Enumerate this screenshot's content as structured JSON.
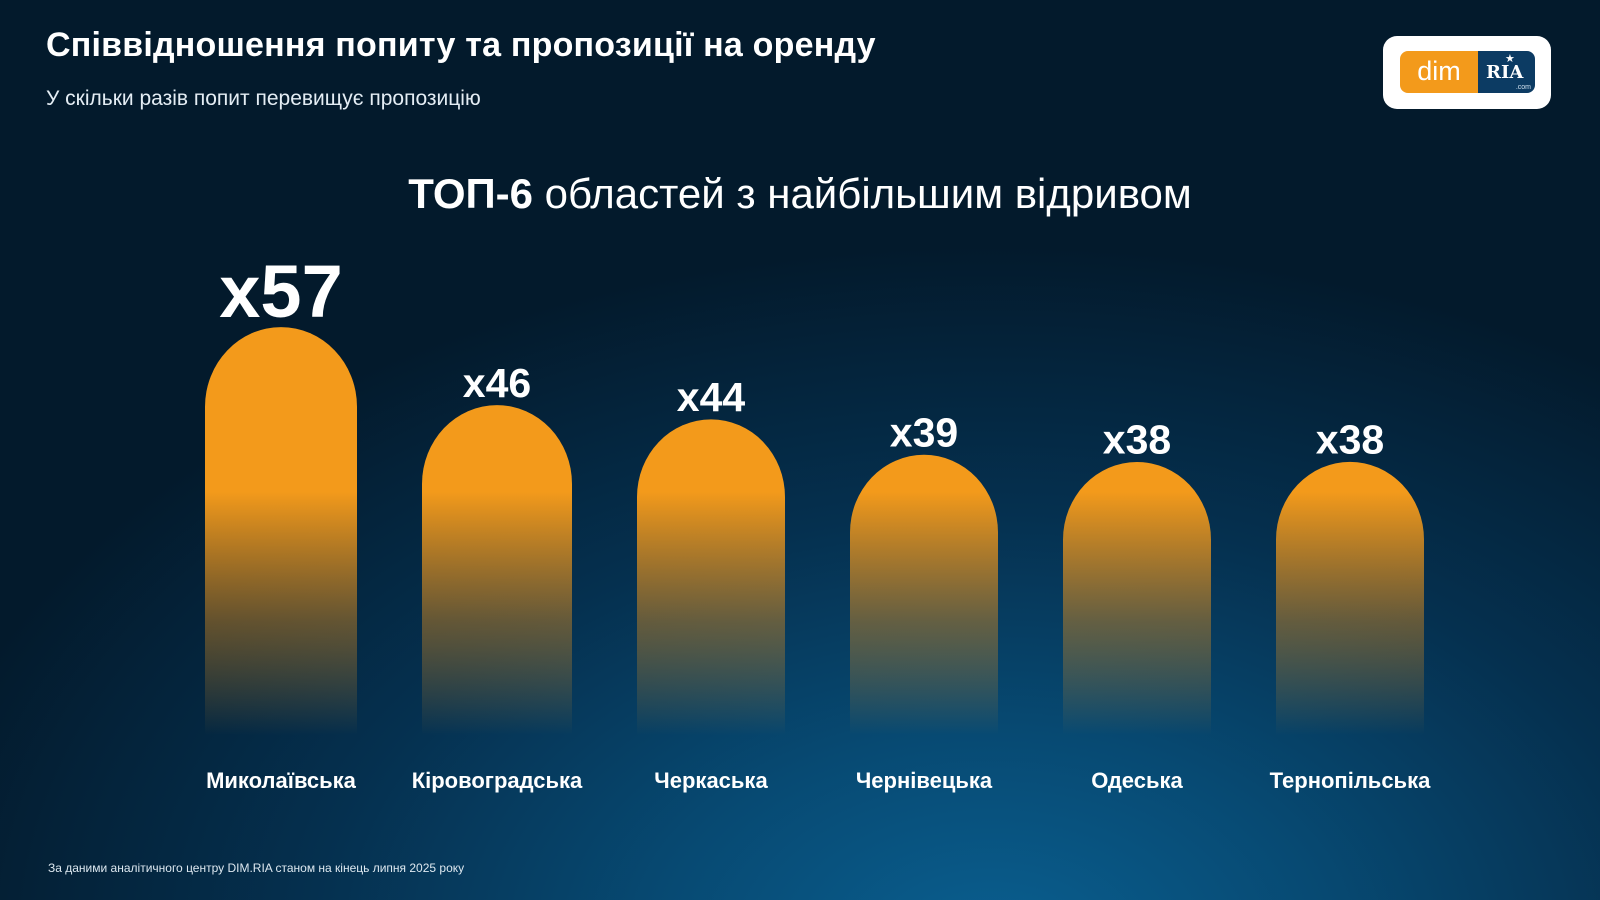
{
  "header": {
    "title": "Співвідношення попиту та пропозиції на оренду",
    "subtitle": "У скільки разів попит перевищує пропозицію"
  },
  "logo": {
    "dim_text": "dim",
    "ria_text": "RIA",
    "ria_suffix": ".com"
  },
  "chart_heading": {
    "bold": "ТОП-6",
    "rest": " областей з найбільшим відривом"
  },
  "chart_data": {
    "type": "bar",
    "categories": [
      "Миколаївська",
      "Кіровоградська",
      "Черкаська",
      "Чернівецька",
      "Одеська",
      "Тернопільська"
    ],
    "values": [
      57,
      46,
      44,
      39,
      38,
      38
    ],
    "data_labels": [
      "x57",
      "x46",
      "x44",
      "x39",
      "x38",
      "x38"
    ],
    "title": "ТОП-6 областей з найбільшим відривом",
    "xlabel": "",
    "ylabel": "",
    "grid": false,
    "colors": {
      "bar": "#f39a1b",
      "text": "#ffffff"
    }
  },
  "footnote": "За даними аналітичного центру DIM.RIA станом на кінець липня 2025 року"
}
